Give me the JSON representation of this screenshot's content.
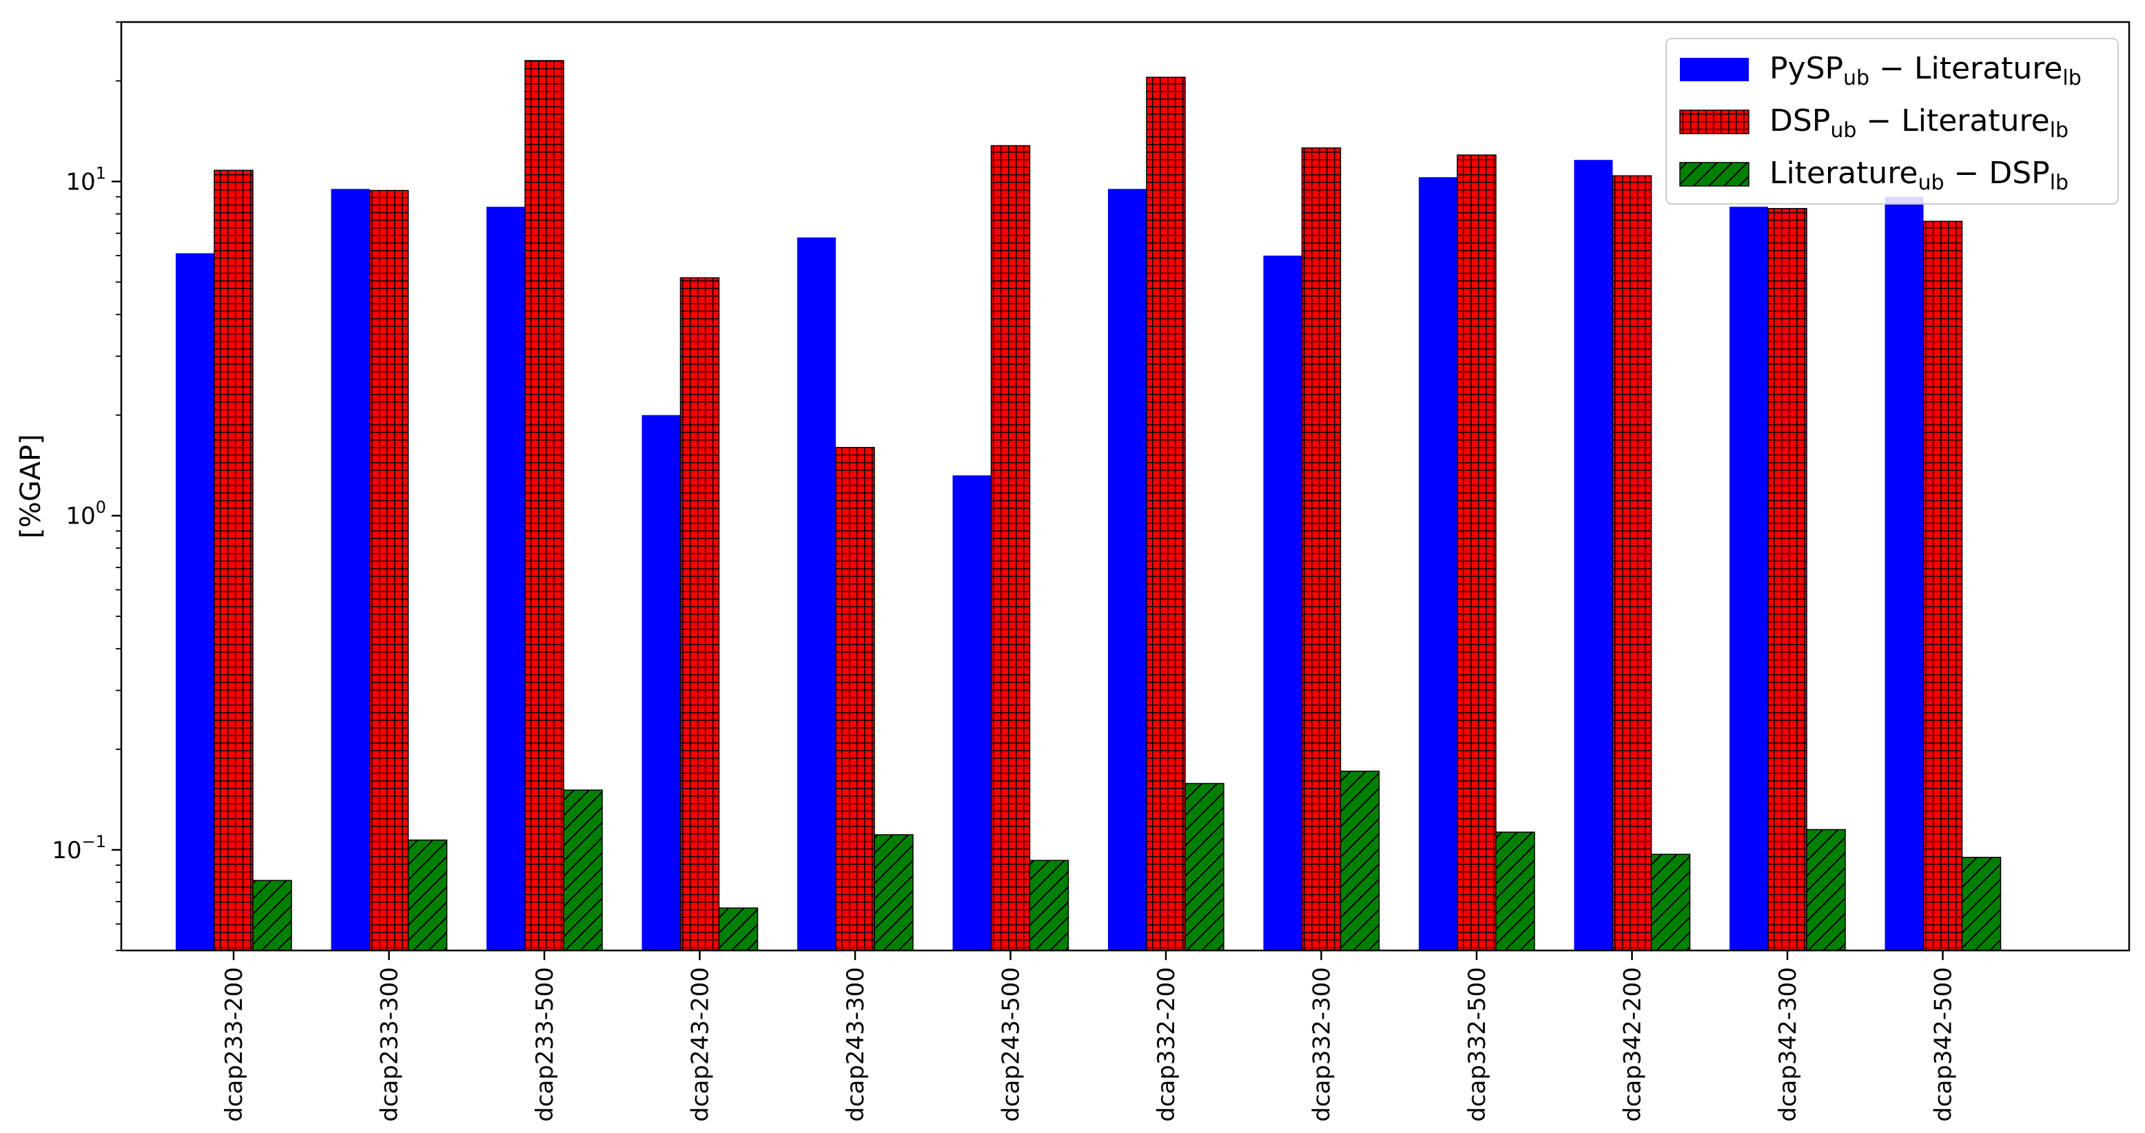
{
  "chart_data": {
    "type": "bar",
    "yscale": "log",
    "ylim": [
      0.05,
      30
    ],
    "ylabel": "[%GAP]",
    "xlabel": "",
    "title": "",
    "grid": false,
    "legend_position": "top-right",
    "y_ticks": [
      {
        "value": 0.1,
        "base": "10",
        "exp": "−1"
      },
      {
        "value": 1,
        "base": "10",
        "exp": "0"
      },
      {
        "value": 10,
        "base": "10",
        "exp": "1"
      }
    ],
    "categories": [
      "dcap233-200",
      "dcap233-300",
      "dcap233-500",
      "dcap243-200",
      "dcap243-300",
      "dcap243-500",
      "dcap332-200",
      "dcap332-300",
      "dcap332-500",
      "dcap342-200",
      "dcap342-300",
      "dcap342-500"
    ],
    "series": [
      {
        "name": "PySP_ub − Literature_lb",
        "legend": {
          "a": "PySP",
          "a_sub": "ub",
          "op": " − ",
          "b": "Literature",
          "b_sub": "lb"
        },
        "color": "#0000ff",
        "hatch": "none",
        "values": [
          6.1,
          9.5,
          8.4,
          2.0,
          6.8,
          1.32,
          9.5,
          6.0,
          10.3,
          11.6,
          8.4,
          9.0
        ]
      },
      {
        "name": "DSP_ub − Literature_lb",
        "legend": {
          "a": "DSP",
          "a_sub": "ub",
          "op": " − ",
          "b": "Literature",
          "b_sub": "lb"
        },
        "color": "#ff0000",
        "hatch": "grid",
        "values": [
          10.8,
          9.4,
          23.0,
          5.15,
          1.6,
          12.8,
          20.5,
          12.6,
          12.0,
          10.4,
          8.3,
          7.6
        ]
      },
      {
        "name": "Literature_ub − DSP_lb",
        "legend": {
          "a": "Literature",
          "a_sub": "ub",
          "op": " − ",
          "b": "DSP",
          "b_sub": "lb"
        },
        "color": "#008000",
        "hatch": "diagonal",
        "values": [
          0.081,
          0.107,
          0.151,
          0.067,
          0.111,
          0.093,
          0.158,
          0.172,
          0.113,
          0.097,
          0.115,
          0.095
        ]
      }
    ]
  }
}
